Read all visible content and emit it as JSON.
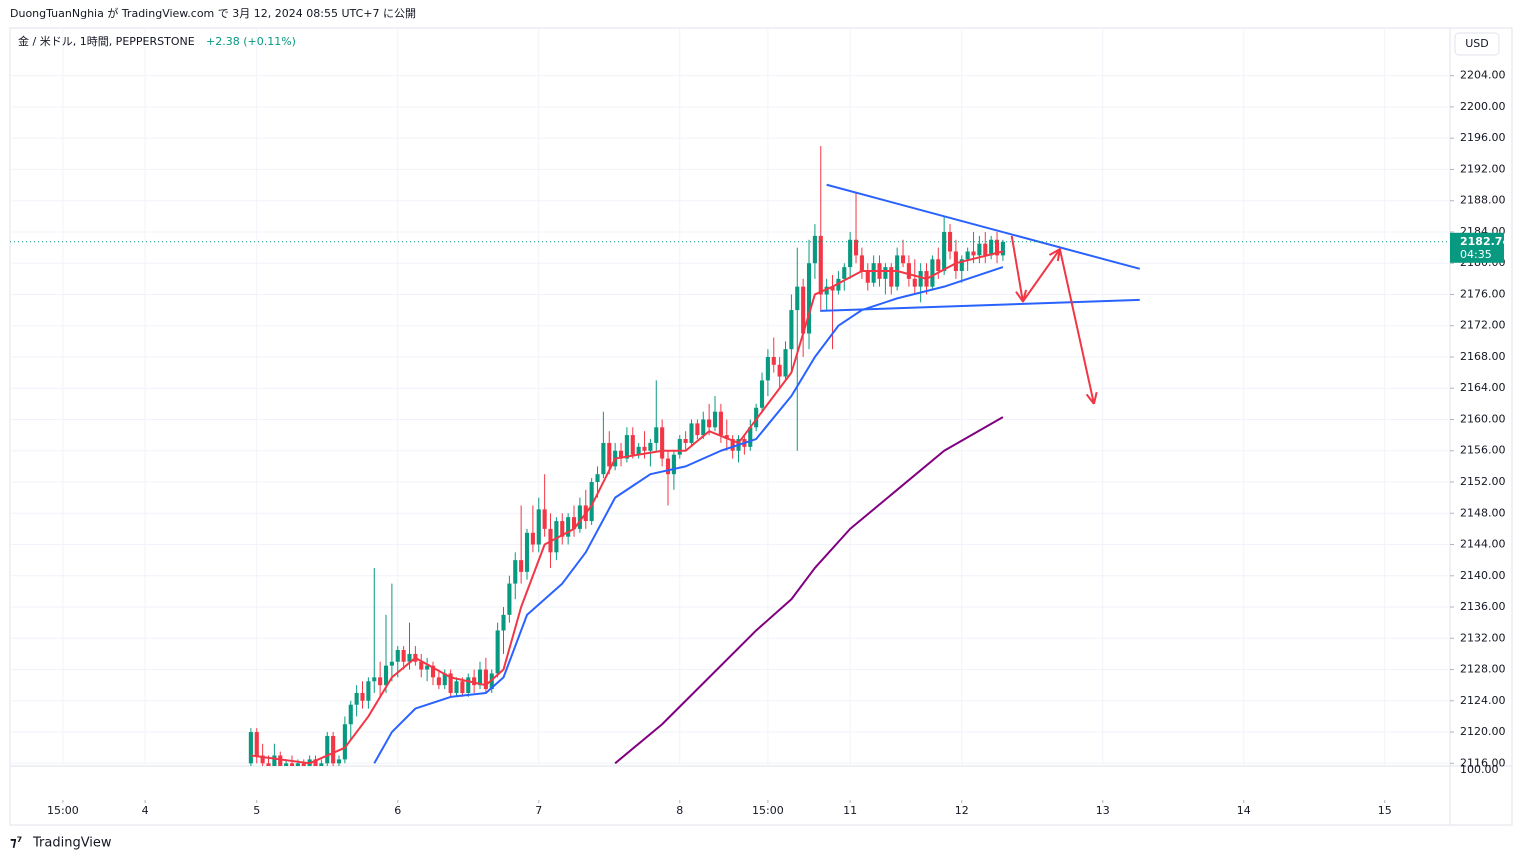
{
  "header": "DuongTuanNghia が TradingView.com で 3月 12, 2024 08:55 UTC+7 に公開",
  "footer": "TradingView",
  "chart_data": {
    "type": "candlestick",
    "title": "金 / 米ドル, 1時間, PEPPERSTONE",
    "change": "+2.38 (+0.11%)",
    "currency": "USD",
    "last_price": 2182.74,
    "countdown": "04:35",
    "indicator_scale_label": "100.00",
    "up_color": "#089981",
    "down_color": "#f23645",
    "grid": true,
    "xlim": [
      -41,
      204.1
    ],
    "ylim": [
      2115.4,
      2210.1
    ],
    "xticks": [
      {
        "value": -32,
        "label": "15:00"
      },
      {
        "value": -18,
        "label": "4"
      },
      {
        "value": 1,
        "label": "5"
      },
      {
        "value": 25,
        "label": "6"
      },
      {
        "value": 49,
        "label": "7"
      },
      {
        "value": 73,
        "label": "8"
      },
      {
        "value": 88,
        "label": "15:00"
      },
      {
        "value": 102,
        "label": "11"
      },
      {
        "value": 121,
        "label": "12"
      },
      {
        "value": 145,
        "label": "13"
      },
      {
        "value": 169,
        "label": "14"
      },
      {
        "value": 193,
        "label": "15"
      }
    ],
    "yticks": [
      {
        "value": 2116,
        "label": "2116.00"
      },
      {
        "value": 2120,
        "label": "2120.00"
      },
      {
        "value": 2124,
        "label": "2124.00"
      },
      {
        "value": 2128,
        "label": "2128.00"
      },
      {
        "value": 2132,
        "label": "2132.00"
      },
      {
        "value": 2136,
        "label": "2136.00"
      },
      {
        "value": 2140,
        "label": "2140.00"
      },
      {
        "value": 2144,
        "label": "2144.00"
      },
      {
        "value": 2148,
        "label": "2148.00"
      },
      {
        "value": 2152,
        "label": "2152.00"
      },
      {
        "value": 2156,
        "label": "2156.00"
      },
      {
        "value": 2160,
        "label": "2160.00"
      },
      {
        "value": 2164,
        "label": "2164.00"
      },
      {
        "value": 2168,
        "label": "2168.00"
      },
      {
        "value": 2172,
        "label": "2172.00"
      },
      {
        "value": 2176,
        "label": "2176.00"
      },
      {
        "value": 2180,
        "label": "2180.00"
      },
      {
        "value": 2184,
        "label": "2184.00"
      },
      {
        "value": 2188,
        "label": "2188.00"
      },
      {
        "value": 2192,
        "label": "2192.00"
      },
      {
        "value": 2196,
        "label": "2196.00"
      },
      {
        "value": 2200,
        "label": "2200.00"
      },
      {
        "value": 2204,
        "label": "2204.00"
      }
    ],
    "ohlc": [
      [
        2116,
        2120.5,
        2114,
        2120
      ],
      [
        2120,
        2120.5,
        2116,
        2117
      ],
      [
        2117,
        2118.5,
        2115,
        2116
      ],
      [
        2116,
        2117,
        2114,
        2115.5
      ],
      [
        2115.5,
        2118.5,
        2115,
        2117
      ],
      [
        2117,
        2117.5,
        2114,
        2115
      ],
      [
        2115,
        2116.5,
        2113,
        2116
      ],
      [
        2116,
        2117,
        2114.5,
        2115
      ],
      [
        2115,
        2116.5,
        2113.5,
        2116
      ],
      [
        2116,
        2116.5,
        2114,
        2115
      ],
      [
        2115,
        2117,
        2114,
        2116.5
      ],
      [
        2116.5,
        2117,
        2115,
        2115.5
      ],
      [
        2115.5,
        2116.5,
        2114,
        2116
      ],
      [
        2116,
        2120,
        2115,
        2119.5
      ],
      [
        2119.5,
        2120,
        2115,
        2116
      ],
      [
        2116,
        2117,
        2114,
        2116.5
      ],
      [
        2116.5,
        2122,
        2116,
        2121
      ],
      [
        2121,
        2124,
        2119,
        2123.5
      ],
      [
        2123.5,
        2126,
        2122,
        2125
      ],
      [
        2125,
        2126.5,
        2123,
        2124
      ],
      [
        2124,
        2127,
        2123,
        2126.5
      ],
      [
        2126.5,
        2141,
        2125,
        2127
      ],
      [
        2127,
        2129,
        2124.5,
        2126
      ],
      [
        2126,
        2135,
        2125,
        2128.5
      ],
      [
        2128.5,
        2139,
        2126.5,
        2129
      ],
      [
        2129,
        2131,
        2127,
        2130.5
      ],
      [
        2130.5,
        2131,
        2128,
        2129
      ],
      [
        2129,
        2134,
        2128,
        2130
      ],
      [
        2130,
        2131,
        2128.5,
        2129
      ],
      [
        2129,
        2130,
        2127,
        2128
      ],
      [
        2128,
        2129.5,
        2126.5,
        2128.5
      ],
      [
        2128.5,
        2129,
        2126,
        2127
      ],
      [
        2127,
        2128,
        2125.5,
        2126
      ],
      [
        2126,
        2128,
        2125.5,
        2127.5
      ],
      [
        2127.5,
        2128,
        2124.5,
        2125
      ],
      [
        2125,
        2127,
        2124.5,
        2126.5
      ],
      [
        2126.5,
        2127,
        2124.5,
        2125
      ],
      [
        2125,
        2127.5,
        2124.5,
        2127
      ],
      [
        2127,
        2128,
        2125,
        2126
      ],
      [
        2126,
        2129,
        2125.5,
        2128
      ],
      [
        2128,
        2129.5,
        2125,
        2125.5
      ],
      [
        2125.5,
        2128,
        2125,
        2127.5
      ],
      [
        2127.5,
        2134,
        2127,
        2133
      ],
      [
        2133,
        2136,
        2130,
        2135
      ],
      [
        2135,
        2140,
        2134,
        2139
      ],
      [
        2139,
        2143,
        2137,
        2142
      ],
      [
        2142,
        2149,
        2139,
        2140.5
      ],
      [
        2140.5,
        2146,
        2139.5,
        2145.5
      ],
      [
        2145.5,
        2149,
        2143,
        2144
      ],
      [
        2144,
        2150,
        2143,
        2148.5
      ],
      [
        2148.5,
        2153,
        2145,
        2146
      ],
      [
        2146,
        2148,
        2141,
        2143
      ],
      [
        2143,
        2147.5,
        2142,
        2147
      ],
      [
        2147,
        2148,
        2144,
        2145
      ],
      [
        2145,
        2148,
        2144,
        2147.5
      ],
      [
        2147.5,
        2149,
        2145,
        2146
      ],
      [
        2146,
        2150,
        2145.5,
        2149
      ],
      [
        2149,
        2151,
        2146,
        2147
      ],
      [
        2147,
        2152.5,
        2146.5,
        2152
      ],
      [
        2152,
        2154,
        2150,
        2153
      ],
      [
        2153,
        2161,
        2152.5,
        2157
      ],
      [
        2157,
        2158.5,
        2153,
        2154
      ],
      [
        2154,
        2157,
        2153.5,
        2156
      ],
      [
        2156,
        2157,
        2154,
        2155
      ],
      [
        2155,
        2159,
        2154.5,
        2158
      ],
      [
        2158,
        2159,
        2155,
        2155.5
      ],
      [
        2155.5,
        2157,
        2155,
        2156.5
      ],
      [
        2156.5,
        2158.5,
        2155,
        2156
      ],
      [
        2156,
        2157.5,
        2154,
        2157
      ],
      [
        2157,
        2165,
        2156,
        2159
      ],
      [
        2159,
        2160,
        2154,
        2155
      ],
      [
        2155,
        2156,
        2149,
        2153
      ],
      [
        2153,
        2156,
        2151,
        2155.5
      ],
      [
        2155.5,
        2158,
        2155,
        2157.5
      ],
      [
        2157.5,
        2158.5,
        2156,
        2157
      ],
      [
        2157,
        2160,
        2156.5,
        2159.5
      ],
      [
        2159.5,
        2160,
        2157.5,
        2158
      ],
      [
        2158,
        2161,
        2157.5,
        2160
      ],
      [
        2160,
        2162,
        2158,
        2159
      ],
      [
        2159,
        2163,
        2158.5,
        2161
      ],
      [
        2161,
        2162,
        2157,
        2158
      ],
      [
        2158,
        2160,
        2156,
        2157.5
      ],
      [
        2157.5,
        2158,
        2155,
        2156
      ],
      [
        2156,
        2158,
        2154.5,
        2157.5
      ],
      [
        2157.5,
        2158,
        2155.5,
        2156.5
      ],
      [
        2156.5,
        2160,
        2156,
        2159
      ],
      [
        2159,
        2162,
        2158.5,
        2161.5
      ],
      [
        2161.5,
        2166,
        2161,
        2165
      ],
      [
        2165,
        2169,
        2163,
        2168
      ],
      [
        2168,
        2170.5,
        2166,
        2167
      ],
      [
        2167,
        2168,
        2164,
        2165.5
      ],
      [
        2165.5,
        2170,
        2165,
        2169
      ],
      [
        2169,
        2176,
        2166,
        2174
      ],
      [
        2174,
        2182,
        2156,
        2177
      ],
      [
        2177,
        2178,
        2168,
        2171
      ],
      [
        2171,
        2183,
        2169,
        2180
      ],
      [
        2180,
        2185,
        2178,
        2183.5
      ],
      [
        2183.5,
        2195,
        2174,
        2176
      ],
      [
        2176,
        2178,
        2174,
        2177
      ],
      [
        2177,
        2178.5,
        2169,
        2176.5
      ],
      [
        2176.5,
        2179,
        2176,
        2178
      ],
      [
        2178,
        2180,
        2176.5,
        2179.5
      ],
      [
        2179.5,
        2184,
        2178,
        2183
      ],
      [
        2183,
        2189,
        2180,
        2181
      ],
      [
        2181,
        2182,
        2178,
        2179
      ],
      [
        2179,
        2180,
        2176.5,
        2177.5
      ],
      [
        2177.5,
        2181,
        2177,
        2180
      ],
      [
        2180,
        2181,
        2177,
        2178
      ],
      [
        2178,
        2180,
        2176,
        2179.5
      ],
      [
        2179.5,
        2180,
        2176,
        2177
      ],
      [
        2177,
        2182,
        2176.5,
        2181
      ],
      [
        2181,
        2183,
        2179.5,
        2180
      ],
      [
        2180,
        2181,
        2177,
        2178
      ],
      [
        2178,
        2180.5,
        2176,
        2177
      ],
      [
        2177,
        2180,
        2175,
        2179
      ],
      [
        2179,
        2180,
        2176,
        2177
      ],
      [
        2177,
        2181,
        2176.5,
        2180.5
      ],
      [
        2180.5,
        2182,
        2178,
        2179
      ],
      [
        2179,
        2186,
        2178.5,
        2184
      ],
      [
        2184,
        2185,
        2180.5,
        2181.5
      ],
      [
        2181.5,
        2183,
        2178,
        2179
      ],
      [
        2179,
        2181,
        2177.5,
        2180.5
      ],
      [
        2180.5,
        2182,
        2179,
        2181.5
      ],
      [
        2181.5,
        2184,
        2180,
        2181
      ],
      [
        2181,
        2183.5,
        2180,
        2182.5
      ],
      [
        2182.5,
        2184,
        2180,
        2181
      ],
      [
        2181,
        2183.5,
        2180.5,
        2183
      ],
      [
        2183,
        2184,
        2180,
        2181
      ],
      [
        2181,
        2183,
        2180.3,
        2182.74
      ]
    ],
    "lines": [
      {
        "color": "#f23645",
        "x": [
          0,
          10,
          16,
          20,
          24,
          28,
          34,
          40,
          43,
          46,
          50,
          55,
          58,
          62,
          70,
          74,
          78,
          83,
          87,
          92,
          96,
          99,
          104,
          110,
          115,
          120,
          128
        ],
        "values": [
          2117,
          2116,
          2118,
          2122,
          2127,
          2129.5,
          2127,
          2126,
          2128,
          2136,
          2144,
          2146,
          2149,
          2155,
          2156,
          2156,
          2158.5,
          2157,
          2161,
          2166,
          2176,
          2177,
          2179,
          2179,
          2178,
          2180,
          2181.5
        ]
      },
      {
        "color": "#2962ff",
        "x": [
          21,
          24,
          28,
          34,
          40,
          43,
          47,
          53,
          57,
          62,
          68,
          74,
          80,
          86,
          92,
          96,
          100,
          104,
          110,
          118,
          124,
          128
        ],
        "values": [
          2116,
          2120,
          2123,
          2124.5,
          2125,
          2127,
          2135,
          2139,
          2143,
          2150,
          2153,
          2154,
          2156,
          2157.5,
          2163,
          2168,
          2172,
          2174,
          2175.5,
          2177,
          2178.5,
          2179.5
        ]
      },
      {
        "color": "#800080",
        "x": [
          62,
          70,
          78,
          86,
          92,
          96,
          102,
          110,
          118,
          128
        ],
        "values": [
          2116,
          2121,
          2127,
          2133,
          2137,
          2141,
          2146,
          2151,
          2156,
          2160.3
        ]
      }
    ],
    "drawings": [
      {
        "color": "#2962ff",
        "arrows": false,
        "x": [
          98,
          151.3
        ],
        "values": [
          2190.04,
          2179.28
        ]
      },
      {
        "color": "#2962ff",
        "arrows": false,
        "x": [
          96.9,
          151.3
        ],
        "values": [
          2173.9,
          2175.3
        ]
      },
      {
        "color": "#f23645",
        "arrows": true,
        "x": [
          129.5,
          131.4,
          137.7,
          143.5
        ],
        "values": [
          2183.5,
          2175.1,
          2181.8,
          2162
        ]
      }
    ]
  }
}
